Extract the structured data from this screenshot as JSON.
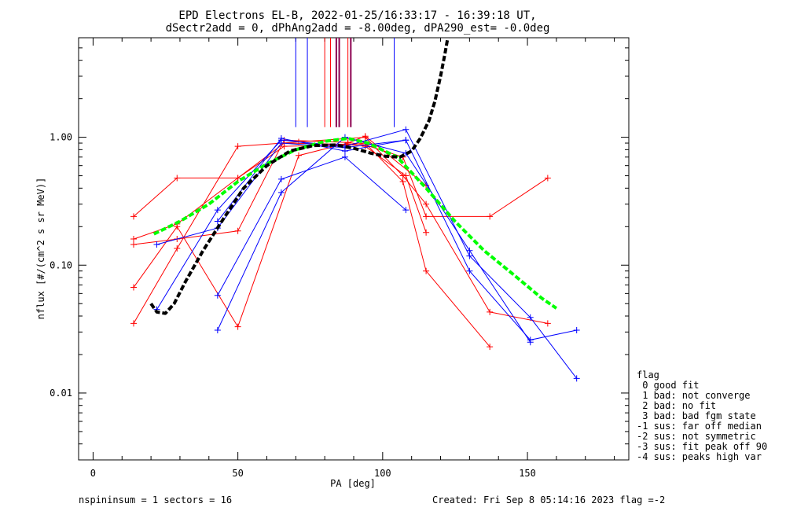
{
  "title": {
    "line1": "EPD Electrons EL-B, 2022-01-25/16:33:17 - 16:39:18 UT,",
    "line2": "dSectr2add = 0, dPhAng2add = -8.00deg, dPA290_est=  -0.0deg"
  },
  "footer": {
    "left": "nspininsum =  1  sectors = 16",
    "right": "Created: Fri Sep  8 05:14:16 2023   flag =-2"
  },
  "legend": {
    "title": "flag",
    "items": [
      " 0 good fit",
      " 1 bad: not converge",
      " 2 bad: no fit",
      " 3 bad: bad fgm state",
      "-1 sus: far off median",
      "-2 sus: not symmetric",
      "-3 sus: fit peak off 90",
      "-4 sus: peaks high var"
    ]
  },
  "chart_data": {
    "type": "line",
    "xlabel": "PA [deg]",
    "ylabel": "nflux [#/(cm^2 s sr MeV)]",
    "xlim": [
      -5,
      185
    ],
    "ylim": [
      0.003,
      6
    ],
    "yscale": "log",
    "xticks": [
      0,
      50,
      100,
      150
    ],
    "xtick_labels": [
      "0",
      "50",
      "100",
      "150"
    ],
    "yticks": [
      0.01,
      0.1,
      1.0
    ],
    "ytick_labels": [
      "0.01",
      "0.10",
      "1.00"
    ],
    "colors": {
      "red": "#ff0000",
      "blue": "#0000ff",
      "purple": "#8b0050",
      "green": "#00ff00",
      "black": "#000000"
    },
    "series": [
      {
        "color": "red",
        "x": [
          14,
          29,
          50,
          66,
          88,
          94,
          107,
          115,
          137,
          157
        ],
        "y": [
          0.145,
          0.16,
          0.185,
          0.95,
          0.91,
          0.87,
          0.7,
          0.24,
          0.24,
          0.48
        ]
      },
      {
        "color": "red",
        "x": [
          14,
          29,
          50,
          66,
          88,
          94,
          108,
          115
        ],
        "y": [
          0.16,
          0.21,
          0.48,
          0.9,
          0.88,
          0.85,
          0.5,
          0.18
        ]
      },
      {
        "color": "red",
        "x": [
          14,
          29,
          50,
          66,
          88,
          94,
          107,
          115,
          137
        ],
        "y": [
          0.24,
          0.48,
          0.48,
          0.85,
          0.87,
          0.9,
          0.45,
          0.09,
          0.023
        ]
      },
      {
        "color": "red",
        "x": [
          14,
          29,
          50,
          71,
          94,
          107,
          115,
          137,
          157
        ],
        "y": [
          0.035,
          0.135,
          0.85,
          0.92,
          1.0,
          0.5,
          0.3,
          0.043,
          0.035
        ]
      },
      {
        "color": "red",
        "x": [
          14,
          29,
          50,
          71,
          88,
          94,
          115
        ],
        "y": [
          0.067,
          0.2,
          0.033,
          0.72,
          0.9,
          1.02,
          0.42
        ]
      },
      {
        "color": "blue",
        "x": [
          22,
          43,
          65,
          87,
          108,
          130,
          151,
          167
        ],
        "y": [
          0.045,
          0.27,
          0.95,
          0.85,
          1.15,
          0.118,
          0.039,
          0.013
        ]
      },
      {
        "color": "blue",
        "x": [
          22,
          43,
          65,
          87,
          108,
          130,
          151,
          167
        ],
        "y": [
          0.145,
          0.195,
          0.9,
          0.83,
          0.95,
          0.09,
          0.026,
          0.031
        ]
      },
      {
        "color": "blue",
        "x": [
          43,
          65,
          87,
          108,
          130,
          151
        ],
        "y": [
          0.031,
          0.37,
          1.0,
          0.75,
          0.13,
          0.025
        ]
      },
      {
        "color": "blue",
        "x": [
          43,
          65,
          87,
          108
        ],
        "y": [
          0.058,
          0.47,
          0.7,
          0.27
        ]
      },
      {
        "color": "blue",
        "x": [
          43,
          65,
          87,
          108
        ],
        "y": [
          0.22,
          0.98,
          0.78,
          0.95
        ]
      }
    ],
    "fits": [
      {
        "name": "",
        "color": "green",
        "style": "dashed",
        "x": [
          21,
          30,
          40,
          50,
          60,
          70,
          80,
          88,
          95,
          105,
          115,
          125,
          135,
          145,
          155,
          160
        ],
        "y": [
          0.175,
          0.22,
          0.3,
          0.45,
          0.62,
          0.8,
          0.93,
          0.98,
          0.9,
          0.7,
          0.4,
          0.22,
          0.13,
          0.085,
          0.055,
          0.046
        ]
      },
      {
        "name": "",
        "color": "black",
        "style": "dashed",
        "x": [
          20,
          22,
          25,
          28,
          32,
          38,
          45,
          52,
          60,
          68,
          76,
          84,
          90,
          96,
          101,
          106,
          110,
          113,
          116,
          118,
          120,
          121.5,
          122.5
        ],
        "y": [
          0.05,
          0.043,
          0.042,
          0.05,
          0.075,
          0.13,
          0.23,
          0.4,
          0.6,
          0.78,
          0.86,
          0.87,
          0.82,
          0.75,
          0.71,
          0.7,
          0.78,
          0.98,
          1.35,
          1.9,
          3.0,
          4.5,
          6.0
        ]
      }
    ],
    "vlines": [
      {
        "color": "blue",
        "x": 70
      },
      {
        "color": "blue",
        "x": 74
      },
      {
        "color": "red",
        "x": 80
      },
      {
        "color": "red",
        "x": 82
      },
      {
        "color": "purple",
        "x": 84
      },
      {
        "color": "purple",
        "x": 85
      },
      {
        "color": "red",
        "x": 88
      },
      {
        "color": "purple",
        "x": 89
      },
      {
        "color": "blue",
        "x": 104
      }
    ],
    "vline_ybottom": 1.2,
    "grid": false
  }
}
